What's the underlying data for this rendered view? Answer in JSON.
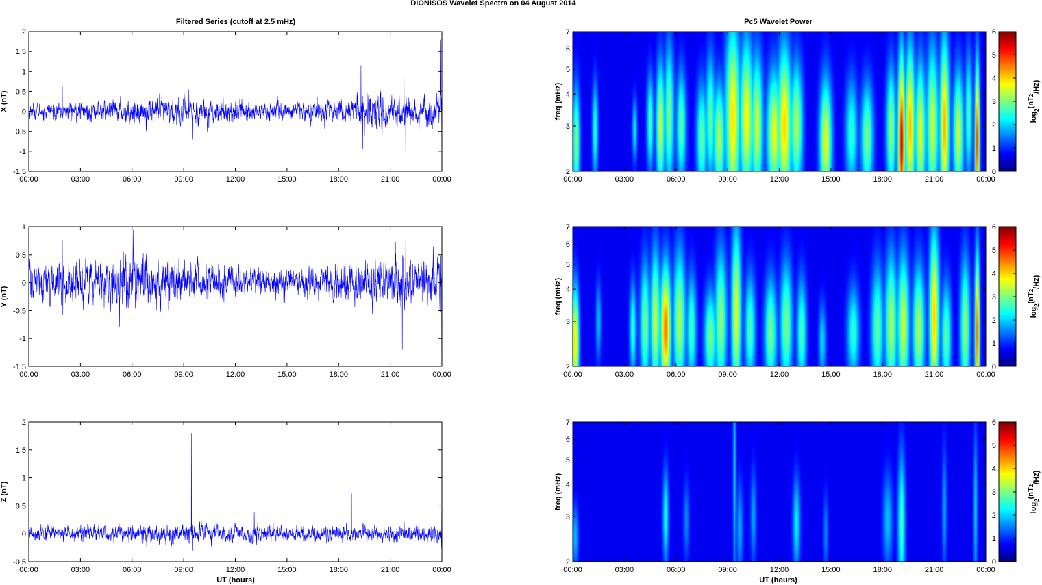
{
  "figure": {
    "title": "DIONISOS Wavelet Spectra on 04 August    2014",
    "left_column_title": "Filtered Series (cutoff at 2.5 mHz)",
    "right_column_title": "Pc5 Wavelet Power",
    "x_axis_label": "UT (hours)"
  },
  "chart_data": [
    {
      "type": "line",
      "component": "X",
      "ylabel": "X (nT)",
      "xlim_hours": [
        0,
        24
      ],
      "ylim": [
        -1.5,
        2
      ],
      "x_ticks": [
        "00:00",
        "03:00",
        "06:00",
        "09:00",
        "12:00",
        "15:00",
        "18:00",
        "21:00",
        "00:00"
      ],
      "y_ticks": [
        "2",
        "1.5",
        "1",
        "0.5",
        "0",
        "-0.5",
        "-1",
        "-1.5"
      ],
      "y_tick_values": [
        2,
        1.5,
        1,
        0.5,
        0,
        -0.5,
        -1,
        -1.5
      ],
      "line_color": "#0000ff",
      "noise_profile": [
        [
          0,
          0.14
        ],
        [
          2,
          0.16
        ],
        [
          4,
          0.18
        ],
        [
          6,
          0.22
        ],
        [
          9,
          0.25
        ],
        [
          12,
          0.2
        ],
        [
          15,
          0.17
        ],
        [
          18,
          0.2
        ],
        [
          19.2,
          0.3
        ],
        [
          20,
          0.35
        ],
        [
          21,
          0.3
        ],
        [
          23,
          0.28
        ],
        [
          24,
          0.3
        ]
      ],
      "spikes": [
        [
          1.95,
          0.62
        ],
        [
          5.35,
          0.92
        ],
        [
          9.3,
          0.55
        ],
        [
          9.5,
          -0.7
        ],
        [
          19.3,
          1.15
        ],
        [
          19.4,
          -0.95
        ],
        [
          21.8,
          0.93
        ],
        [
          21.9,
          -1.0
        ],
        [
          23.9,
          1.8
        ],
        [
          23.95,
          -0.75
        ]
      ],
      "grid": false
    },
    {
      "type": "line",
      "component": "Y",
      "ylabel": "Y (nT)",
      "xlim_hours": [
        0,
        24
      ],
      "ylim": [
        -1.5,
        1
      ],
      "x_ticks": [
        "00:00",
        "03:00",
        "06:00",
        "09:00",
        "12:00",
        "15:00",
        "18:00",
        "21:00",
        "00:00"
      ],
      "y_ticks": [
        "1",
        "0.5",
        "0",
        "-0.5",
        "-1",
        "-1.5"
      ],
      "y_tick_values": [
        1,
        0.5,
        0,
        -0.5,
        -1,
        -1.5
      ],
      "line_color": "#0000ff",
      "noise_profile": [
        [
          0,
          0.22
        ],
        [
          2,
          0.25
        ],
        [
          4,
          0.3
        ],
        [
          5.5,
          0.4
        ],
        [
          7,
          0.32
        ],
        [
          9,
          0.28
        ],
        [
          12,
          0.2
        ],
        [
          15,
          0.18
        ],
        [
          18,
          0.25
        ],
        [
          20,
          0.3
        ],
        [
          21.5,
          0.35
        ],
        [
          24,
          0.3
        ]
      ],
      "spikes": [
        [
          1.95,
          0.77
        ],
        [
          1.98,
          -0.58
        ],
        [
          5.5,
          0.55
        ],
        [
          21.3,
          0.72
        ],
        [
          21.7,
          -1.2
        ],
        [
          21.9,
          0.75
        ],
        [
          23.95,
          -1.45
        ],
        [
          23.9,
          0.48
        ]
      ],
      "grid": false
    },
    {
      "type": "line",
      "component": "Z",
      "ylabel": "Z (nT)",
      "xlim_hours": [
        0,
        24
      ],
      "ylim": [
        -0.5,
        2
      ],
      "x_ticks": [
        "00:00",
        "03:00",
        "06:00",
        "09:00",
        "12:00",
        "15:00",
        "18:00",
        "21:00",
        "00:00"
      ],
      "y_ticks": [
        "2",
        "1.5",
        "1",
        "0.5",
        "0",
        "-0.5"
      ],
      "y_tick_values": [
        2,
        1.5,
        1,
        0.5,
        0,
        -0.5
      ],
      "line_color": "#0000ff",
      "noise_profile": [
        [
          0,
          0.09
        ],
        [
          3,
          0.1
        ],
        [
          6,
          0.12
        ],
        [
          9,
          0.13
        ],
        [
          12,
          0.11
        ],
        [
          15,
          0.1
        ],
        [
          18,
          0.11
        ],
        [
          21,
          0.1
        ],
        [
          24,
          0.12
        ]
      ],
      "spikes": [
        [
          9.45,
          1.8
        ],
        [
          9.5,
          -0.3
        ],
        [
          18.75,
          0.72
        ],
        [
          13.1,
          0.38
        ],
        [
          23.95,
          0.5
        ],
        [
          23.98,
          -0.25
        ]
      ],
      "grid": false
    },
    {
      "type": "heatmap",
      "ylabel": "freq (mHz)",
      "colorbar_label": "log2(nT2/Hz)",
      "xlim_hours": [
        0,
        24
      ],
      "y_scale": "log",
      "ylim_mHz": [
        2,
        7
      ],
      "y_ticks": [
        "7",
        "6",
        "5",
        "4",
        "3",
        "2"
      ],
      "y_tick_values": [
        7,
        6,
        5,
        4,
        3,
        2
      ],
      "x_ticks": [
        "00:00",
        "03:00",
        "06:00",
        "09:00",
        "12:00",
        "15:00",
        "18:00",
        "21:00",
        "00:00"
      ],
      "clim": [
        0,
        6
      ],
      "colorbar_ticks": [
        "6",
        "5",
        "4",
        "3",
        "2",
        "1",
        "0"
      ],
      "colormap": "jet",
      "blobs": [
        [
          0.2,
          2.6,
          3.0,
          0.15,
          0.35
        ],
        [
          1.3,
          2.9,
          2.4,
          0.12,
          0.3
        ],
        [
          3.6,
          2.9,
          2.0,
          0.1,
          0.2
        ],
        [
          4.5,
          3.1,
          2.6,
          0.14,
          0.3
        ],
        [
          5.1,
          3.0,
          3.6,
          0.18,
          0.4
        ],
        [
          5.6,
          3.3,
          3.0,
          0.2,
          0.45
        ],
        [
          6.3,
          3.0,
          2.8,
          0.2,
          0.35
        ],
        [
          7.5,
          2.7,
          2.8,
          0.22,
          0.35
        ],
        [
          8.0,
          3.2,
          2.8,
          0.2,
          0.4
        ],
        [
          8.5,
          2.7,
          3.4,
          0.25,
          0.35
        ],
        [
          9.3,
          3.2,
          4.2,
          0.3,
          0.6
        ],
        [
          10.1,
          3.2,
          4.0,
          0.28,
          0.5
        ],
        [
          10.7,
          3.0,
          3.6,
          0.25,
          0.45
        ],
        [
          11.7,
          2.8,
          3.8,
          0.3,
          0.4
        ],
        [
          12.3,
          3.0,
          4.3,
          0.3,
          0.5
        ],
        [
          13.0,
          3.0,
          3.4,
          0.25,
          0.4
        ],
        [
          14.7,
          2.6,
          3.8,
          0.25,
          0.4
        ],
        [
          16.2,
          2.8,
          2.4,
          0.25,
          0.35
        ],
        [
          17.1,
          2.7,
          3.0,
          0.25,
          0.35
        ],
        [
          18.5,
          2.9,
          3.2,
          0.2,
          0.4
        ],
        [
          19.1,
          2.6,
          5.8,
          0.15,
          0.55
        ],
        [
          19.6,
          3.0,
          4.5,
          0.2,
          0.5
        ],
        [
          20.2,
          2.8,
          3.8,
          0.22,
          0.45
        ],
        [
          20.9,
          3.0,
          3.6,
          0.25,
          0.5
        ],
        [
          21.6,
          3.0,
          4.6,
          0.2,
          0.55
        ],
        [
          22.4,
          2.8,
          3.6,
          0.22,
          0.4
        ],
        [
          23.5,
          2.6,
          5.4,
          0.1,
          0.5
        ],
        [
          23.0,
          3.3,
          2.6,
          0.15,
          0.4
        ]
      ]
    },
    {
      "type": "heatmap",
      "ylabel": "freq (mHz)",
      "colorbar_label": "log2(nT2/Hz)",
      "xlim_hours": [
        0,
        24
      ],
      "y_scale": "log",
      "ylim_mHz": [
        2,
        7
      ],
      "y_ticks": [
        "7",
        "6",
        "5",
        "4",
        "3",
        "2"
      ],
      "y_tick_values": [
        7,
        6,
        5,
        4,
        3,
        2
      ],
      "x_ticks": [
        "00:00",
        "03:00",
        "06:00",
        "09:00",
        "12:00",
        "15:00",
        "18:00",
        "21:00",
        "00:00"
      ],
      "clim": [
        0,
        6
      ],
      "colorbar_ticks": [
        "6",
        "5",
        "4",
        "3",
        "2",
        "1",
        "0"
      ],
      "colormap": "jet",
      "blobs": [
        [
          0.15,
          2.5,
          4.2,
          0.15,
          0.35
        ],
        [
          1.5,
          3.0,
          1.6,
          0.12,
          0.25
        ],
        [
          3.5,
          2.8,
          2.4,
          0.14,
          0.3
        ],
        [
          4.2,
          2.9,
          3.0,
          0.2,
          0.4
        ],
        [
          4.8,
          3.0,
          3.6,
          0.2,
          0.45
        ],
        [
          5.4,
          2.8,
          5.0,
          0.22,
          0.4
        ],
        [
          6.2,
          3.0,
          3.4,
          0.25,
          0.45
        ],
        [
          6.9,
          2.8,
          2.6,
          0.2,
          0.35
        ],
        [
          8.0,
          2.6,
          3.0,
          0.25,
          0.3
        ],
        [
          8.6,
          3.0,
          3.2,
          0.25,
          0.45
        ],
        [
          9.5,
          3.2,
          3.8,
          0.2,
          0.55
        ],
        [
          10.3,
          2.8,
          2.6,
          0.22,
          0.35
        ],
        [
          11.5,
          2.7,
          3.0,
          0.25,
          0.35
        ],
        [
          12.4,
          2.9,
          3.0,
          0.25,
          0.4
        ],
        [
          13.3,
          2.7,
          2.6,
          0.2,
          0.35
        ],
        [
          14.5,
          2.5,
          1.8,
          0.15,
          0.25
        ],
        [
          16.3,
          2.7,
          2.4,
          0.25,
          0.3
        ],
        [
          17.7,
          2.8,
          2.8,
          0.25,
          0.4
        ],
        [
          18.5,
          2.9,
          3.4,
          0.25,
          0.45
        ],
        [
          19.2,
          2.9,
          3.6,
          0.25,
          0.45
        ],
        [
          20.1,
          2.8,
          3.4,
          0.25,
          0.4
        ],
        [
          21.0,
          3.1,
          4.4,
          0.2,
          0.55
        ],
        [
          21.7,
          2.6,
          2.8,
          0.2,
          0.35
        ],
        [
          22.8,
          2.8,
          3.2,
          0.2,
          0.45
        ],
        [
          23.5,
          2.7,
          5.2,
          0.1,
          0.5
        ]
      ]
    },
    {
      "type": "heatmap",
      "ylabel": "freq (mHz)",
      "colorbar_label": "log2(nT2/Hz)",
      "xlim_hours": [
        0,
        24
      ],
      "y_scale": "log",
      "ylim_mHz": [
        2,
        7
      ],
      "y_ticks": [
        "7",
        "6",
        "5",
        "4",
        "3",
        "2"
      ],
      "y_tick_values": [
        7,
        6,
        5,
        4,
        3,
        2
      ],
      "x_ticks": [
        "00:00",
        "03:00",
        "06:00",
        "09:00",
        "12:00",
        "15:00",
        "18:00",
        "21:00",
        "00:00"
      ],
      "clim": [
        0,
        6
      ],
      "colorbar_ticks": [
        "6",
        "5",
        "4",
        "3",
        "2",
        "1",
        "0"
      ],
      "colormap": "jet",
      "blobs": [
        [
          0.15,
          2.5,
          1.6,
          0.12,
          0.2
        ],
        [
          5.4,
          3.0,
          2.2,
          0.12,
          0.3
        ],
        [
          6.6,
          2.9,
          1.2,
          0.12,
          0.25
        ],
        [
          9.4,
          4.5,
          1.8,
          0.06,
          0.8
        ],
        [
          9.7,
          2.7,
          1.4,
          0.14,
          0.3
        ],
        [
          10.5,
          3.0,
          1.4,
          0.12,
          0.3
        ],
        [
          13.0,
          2.8,
          2.0,
          0.15,
          0.3
        ],
        [
          14.7,
          2.6,
          1.2,
          0.1,
          0.25
        ],
        [
          18.3,
          2.9,
          1.6,
          0.2,
          0.3
        ],
        [
          19.1,
          2.8,
          2.6,
          0.15,
          0.45
        ],
        [
          21.6,
          3.2,
          1.4,
          0.1,
          0.4
        ],
        [
          23.4,
          3.2,
          1.8,
          0.08,
          0.5
        ]
      ]
    }
  ]
}
